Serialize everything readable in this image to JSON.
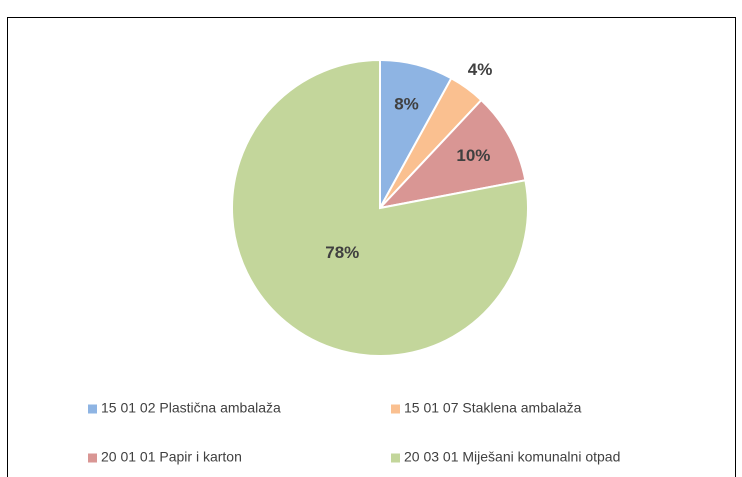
{
  "chart_data": {
    "type": "pie",
    "categories": [
      "15 01 02 Plastična ambalaža",
      "15 01 07 Staklena ambalaža",
      "20 01 01 Papir i karton",
      "20 03 01 Miješani komunalni otpad"
    ],
    "values": [
      8,
      4,
      10,
      78
    ],
    "value_labels": [
      "8%",
      "4%",
      "10%",
      "78%"
    ],
    "colors": [
      "#8eb4e3",
      "#fac090",
      "#d99694",
      "#c3d69b"
    ],
    "legend": "bottom"
  }
}
